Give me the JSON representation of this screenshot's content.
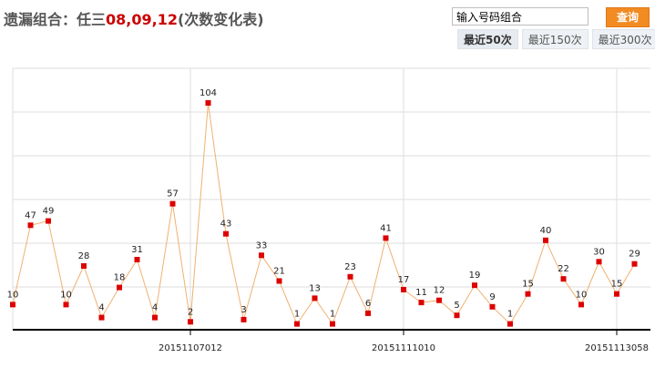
{
  "header": {
    "title_prefix": "遗漏组合：任三",
    "title_combo": "08,09,12",
    "title_suffix": "(次数变化表)"
  },
  "search": {
    "value": "输入号码组合",
    "button_label": "查询"
  },
  "tabs": [
    {
      "label": "最近50次",
      "active": true
    },
    {
      "label": "最近150次",
      "active": false
    },
    {
      "label": "最近300次",
      "active": false
    }
  ],
  "colors": {
    "line": "#f0b070",
    "point": "#dd0000",
    "grid": "#dddddd",
    "axis": "#000000",
    "button": "#f28b22",
    "combo": "#cc0000"
  },
  "chart_data": {
    "type": "line",
    "title": "",
    "xlabel": "",
    "ylabel": "",
    "y_tick_labels_shown": false,
    "x_tick_labels": [
      {
        "index": 10,
        "label": "20151107012"
      },
      {
        "index": 22,
        "label": "20151111010"
      },
      {
        "index": 34,
        "label": "20151113058"
      }
    ],
    "ylim": [
      0,
      120
    ],
    "grid": true,
    "series": [
      {
        "values": [
          10,
          47,
          49,
          10,
          28,
          4,
          18,
          31,
          4,
          57,
          2,
          104,
          43,
          3,
          33,
          21,
          1,
          13,
          1,
          23,
          6,
          41,
          17,
          11,
          12,
          5,
          19,
          9,
          1,
          15,
          40,
          22,
          10,
          30,
          15,
          29
        ]
      }
    ]
  }
}
